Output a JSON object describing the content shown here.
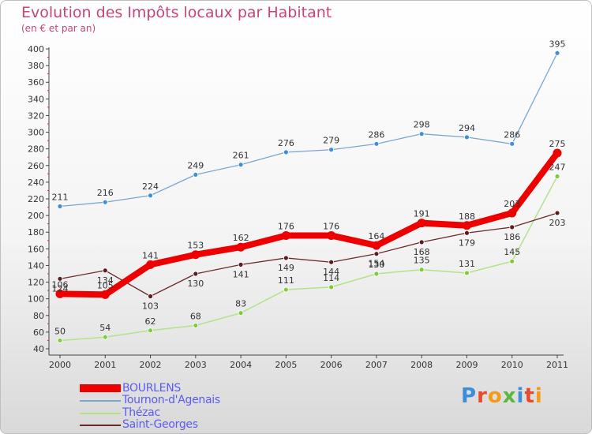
{
  "header": {
    "title": "Evolution des Impôts locaux par Habitant",
    "subtitle": "(en € et par an)"
  },
  "brand": {
    "text": "Proxiti"
  },
  "colors": {
    "title": "#c4457a",
    "legend_text": "#5b5bf0",
    "axis": "#444444"
  },
  "chart_data": {
    "type": "line",
    "title": "Evolution des Impôts locaux par Habitant",
    "subtitle": "(en € et par an)",
    "x": [
      "2000",
      "2001",
      "2002",
      "2003",
      "2004",
      "2005",
      "2006",
      "2007",
      "2008",
      "2009",
      "2010",
      "2011"
    ],
    "ylim": [
      40,
      400
    ],
    "yticks": [
      40,
      60,
      80,
      100,
      120,
      140,
      160,
      180,
      200,
      220,
      240,
      260,
      280,
      300,
      320,
      340,
      360,
      380,
      400
    ],
    "grid": false,
    "legend_position": "bottom-left",
    "series": [
      {
        "name": "Tournon-d'Agenais",
        "color": "#7aa7cf",
        "marker": "#3f8fd6",
        "width": 1.3,
        "labels_below": false,
        "values": [
          211,
          216,
          224,
          249,
          261,
          276,
          279,
          286,
          298,
          294,
          286,
          395
        ]
      },
      {
        "name": "Thézac",
        "color": "#b3e28a",
        "marker": "#7fcc3a",
        "width": 1.5,
        "labels_below": false,
        "values": [
          50,
          54,
          62,
          68,
          83,
          111,
          114,
          130,
          135,
          131,
          145,
          247
        ]
      },
      {
        "name": "Saint-Georges",
        "color": "#6b2a2a",
        "marker": "#5a1c1c",
        "width": 1.3,
        "labels_below": true,
        "values": [
          124,
          134,
          103,
          130,
          141,
          149,
          144,
          154,
          168,
          179,
          186,
          203
        ]
      },
      {
        "name": "BOURLENS",
        "color": "#ee0000",
        "marker": "#ee0000",
        "width": 8,
        "labels_below": false,
        "values": [
          106,
          105,
          141,
          153,
          162,
          176,
          176,
          164,
          191,
          188,
          203,
          275
        ]
      }
    ],
    "legend": [
      "BOURLENS",
      "Tournon-d'Agenais",
      "Thézac",
      "Saint-Georges"
    ]
  }
}
